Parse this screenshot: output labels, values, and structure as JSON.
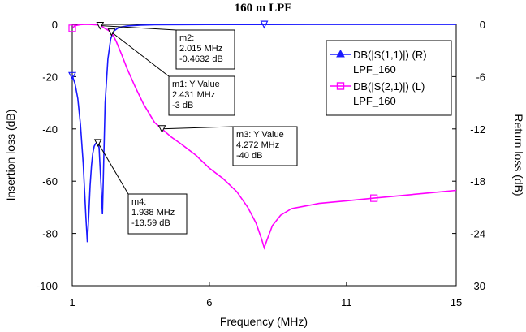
{
  "chart_data": {
    "type": "line",
    "title": "160 m LPF",
    "xlabel": "Frequency (MHz)",
    "ylabel_left": "Insertion loss (dB)",
    "ylabel_right": "Return loss (dB)",
    "xlim": [
      1,
      15
    ],
    "ylim_left": [
      -100,
      0
    ],
    "ylim_right": [
      -30,
      0
    ],
    "xticks": [
      "1",
      "6",
      "11",
      "15"
    ],
    "yticks_left": [
      "0",
      "-20",
      "-40",
      "-60",
      "-80",
      "-100"
    ],
    "yticks_right": [
      "0",
      "-6",
      "-12",
      "-18",
      "-24",
      "-30"
    ],
    "grid": false,
    "legend_position": "top-right",
    "series": [
      {
        "name": "DB(|S(1,1)|) (R)",
        "subname": "LPF_160",
        "axis": "right",
        "color": "#1a1aff",
        "marker": "triangle",
        "x": [
          1.0,
          1.1,
          1.2,
          1.3,
          1.4,
          1.5,
          1.55,
          1.6,
          1.65,
          1.7,
          1.75,
          1.8,
          1.85,
          1.9,
          1.938,
          1.98,
          2.0,
          2.05,
          2.1,
          2.2,
          2.3,
          2.4,
          2.5,
          2.7,
          3.0,
          3.5,
          4.0,
          5.0,
          6.0,
          8.0,
          10.0,
          12.0,
          15.0
        ],
        "values": [
          -5.9,
          -6.8,
          -8.5,
          -11.5,
          -16.0,
          -22.3,
          -25.0,
          -22.0,
          -18.5,
          -16.2,
          -14.8,
          -14.0,
          -13.7,
          -13.6,
          -13.59,
          -14.2,
          -15.5,
          -18.5,
          -21.8,
          -9.0,
          -4.0,
          -1.7,
          -0.8,
          -0.35,
          -0.18,
          -0.09,
          -0.05,
          -0.03,
          -0.02,
          -0.015,
          -0.01,
          -0.01,
          -0.01
        ]
      },
      {
        "name": "DB(|S(2,1)|) (L)",
        "subname": "LPF_160",
        "axis": "left",
        "color": "#ff00ff",
        "marker": "square",
        "x": [
          1.0,
          1.1,
          1.3,
          1.5,
          1.7,
          1.9,
          2.015,
          2.1,
          2.2,
          2.3,
          2.431,
          2.6,
          2.8,
          3.0,
          3.3,
          3.6,
          4.0,
          4.272,
          4.6,
          5.0,
          5.5,
          6.0,
          6.5,
          7.0,
          7.4,
          7.7,
          7.9,
          8.0,
          8.1,
          8.3,
          8.6,
          9.0,
          9.5,
          10.0,
          11.0,
          12.0,
          13.0,
          14.0,
          15.0
        ],
        "values": [
          -1.5,
          -0.5,
          -0.1,
          0.0,
          -0.05,
          -0.2,
          -0.4632,
          -0.9,
          -1.6,
          -2.2,
          -3.0,
          -6.5,
          -11.5,
          -17.0,
          -24.0,
          -30.5,
          -37.5,
          -40.0,
          -43.0,
          -46.0,
          -50.0,
          -55.0,
          -59.0,
          -64.0,
          -70.0,
          -76.0,
          -82.0,
          -85.5,
          -82.5,
          -77.0,
          -73.0,
          -70.5,
          -69.5,
          -68.5,
          -67.5,
          -66.5,
          -65.5,
          -64.5,
          -63.5
        ]
      }
    ],
    "markers": [
      {
        "name": "m1",
        "label": "m1: Y Value",
        "freq": "2.431 MHz",
        "value": "-3 dB",
        "x": 2.431,
        "y": -3
      },
      {
        "name": "m2",
        "label": "m2:",
        "freq": "2.015 MHz",
        "value": "-0.4632 dB",
        "x": 2.015,
        "y": -0.4632
      },
      {
        "name": "m3",
        "label": "m3: Y Value",
        "freq": "4.272 MHz",
        "value": "-40 dB",
        "x": 4.272,
        "y": -40
      },
      {
        "name": "m4",
        "label": "m4:",
        "freq": "1.938 MHz",
        "value": "-13.59 dB",
        "x": 1.938,
        "y": -13.59
      }
    ]
  }
}
